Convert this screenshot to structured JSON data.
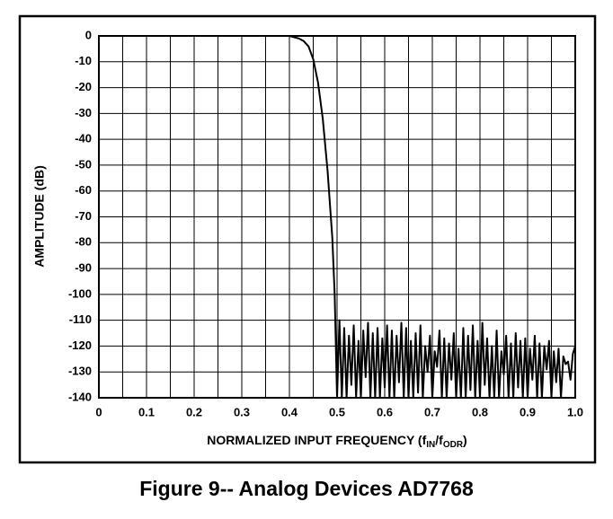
{
  "chart_data": {
    "type": "line",
    "caption": "Figure 9-- Analog Devices AD7768",
    "y_label": "AMPLITUDE (dB)",
    "x_label_parts": [
      "NORMALIZED INPUT FREQUENCY (f",
      "IN",
      "/f",
      "ODR",
      ")"
    ],
    "color": "#000000",
    "grid": true,
    "xlim": [
      0,
      1
    ],
    "ylim": [
      -140,
      0
    ],
    "xticks": [
      0,
      0.1,
      0.2,
      0.3,
      0.4,
      0.5,
      0.6,
      0.7,
      0.8,
      0.9,
      {
        "value": 1,
        "label": "1.0"
      }
    ],
    "xminor_ticks": [
      0.05,
      0.15,
      0.25,
      0.35,
      0.45,
      0.55,
      0.65,
      0.75,
      0.85,
      0.95
    ],
    "yticks": [
      0,
      -10,
      -20,
      -30,
      -40,
      -50,
      -60,
      -70,
      -80,
      -90,
      -100,
      -110,
      -120,
      -130,
      -140
    ],
    "x": [
      0,
      0.4,
      0.42,
      0.43,
      0.44,
      0.45,
      0.46,
      0.47,
      0.48,
      0.49,
      0.495,
      0.5,
      0.505,
      0.51,
      0.515,
      0.52,
      0.525,
      0.53,
      0.535,
      0.54,
      0.545,
      0.55,
      0.555,
      0.56,
      0.565,
      0.57,
      0.575,
      0.58,
      0.585,
      0.59,
      0.595,
      0.6,
      0.605,
      0.61,
      0.615,
      0.62,
      0.625,
      0.63,
      0.635,
      0.64,
      0.645,
      0.65,
      0.655,
      0.66,
      0.665,
      0.67,
      0.675,
      0.68,
      0.685,
      0.69,
      0.695,
      0.7,
      0.705,
      0.71,
      0.715,
      0.72,
      0.725,
      0.73,
      0.735,
      0.74,
      0.745,
      0.75,
      0.755,
      0.76,
      0.765,
      0.77,
      0.775,
      0.78,
      0.785,
      0.79,
      0.795,
      0.8,
      0.805,
      0.81,
      0.815,
      0.82,
      0.825,
      0.83,
      0.835,
      0.84,
      0.845,
      0.85,
      0.855,
      0.86,
      0.865,
      0.87,
      0.875,
      0.88,
      0.885,
      0.89,
      0.895,
      0.9,
      0.905,
      0.91,
      0.915,
      0.92,
      0.925,
      0.93,
      0.935,
      0.94,
      0.945,
      0.95,
      0.955,
      0.96,
      0.965,
      0.97,
      0.975,
      0.98,
      0.985,
      0.99,
      0.995,
      1.0
    ],
    "values": [
      0,
      0,
      -1,
      -2,
      -4,
      -9,
      -18,
      -32,
      -52,
      -78,
      -100,
      -140,
      -110,
      -140,
      -113,
      -140,
      -116,
      -135,
      -112,
      -140,
      -118,
      -140,
      -114,
      -132,
      -111,
      -140,
      -115,
      -140,
      -113,
      -140,
      -117,
      -136,
      -112,
      -140,
      -114,
      -140,
      -116,
      -134,
      -111,
      -140,
      -113,
      -140,
      -118,
      -140,
      -115,
      -138,
      -112,
      -140,
      -120,
      -130,
      -116,
      -140,
      -122,
      -128,
      -114,
      -140,
      -117,
      -140,
      -119,
      -133,
      -115,
      -140,
      -121,
      -140,
      -113,
      -140,
      -116,
      -137,
      -112,
      -140,
      -118,
      -140,
      -111,
      -135,
      -117,
      -140,
      -120,
      -140,
      -114,
      -140,
      -122,
      -131,
      -116,
      -140,
      -119,
      -140,
      -115,
      -136,
      -118,
      -140,
      -117,
      -140,
      -121,
      -133,
      -116,
      -140,
      -119,
      -140,
      -120,
      -129,
      -118,
      -140,
      -122,
      -134,
      -121,
      -140,
      -124,
      -127,
      -126,
      -133,
      -123,
      -120
    ]
  }
}
